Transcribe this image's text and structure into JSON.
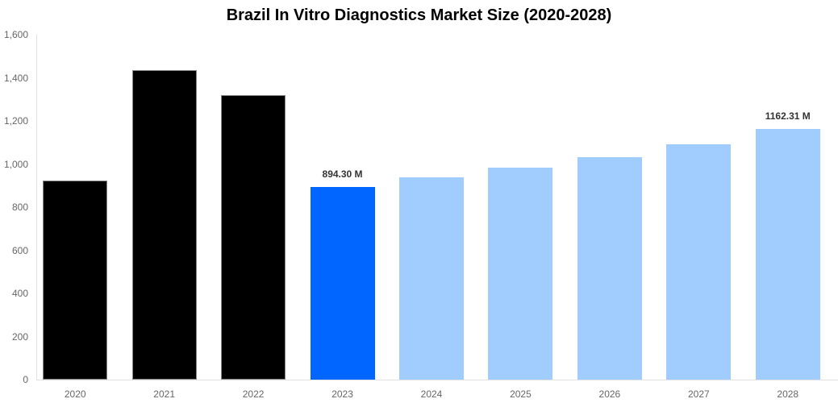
{
  "chart_data": {
    "type": "bar",
    "title": "Brazil In Vitro Diagnostics Market Size (2020-2028)",
    "xlabel": "",
    "ylabel": "",
    "ylim": [
      0,
      1600
    ],
    "yticks": [
      "0",
      "200",
      "400",
      "600",
      "800",
      "1,000",
      "1,200",
      "1,400",
      "1,600"
    ],
    "grid": false,
    "legend": null,
    "categories": [
      "2020",
      "2021",
      "2022",
      "2023",
      "2024",
      "2025",
      "2026",
      "2027",
      "2028"
    ],
    "values": [
      923,
      1435,
      1320,
      894.3,
      938,
      983,
      1032,
      1091,
      1162.31
    ],
    "colors": [
      "#000000",
      "#000000",
      "#000000",
      "#0066ff",
      "#a0cdfd",
      "#a0cdfd",
      "#a0cdfd",
      "#a0cdfd",
      "#a0cdfd"
    ],
    "annotations": [
      {
        "category": "2023",
        "text": "894.30 M"
      },
      {
        "category": "2028",
        "text": "1162.31 M"
      }
    ]
  }
}
